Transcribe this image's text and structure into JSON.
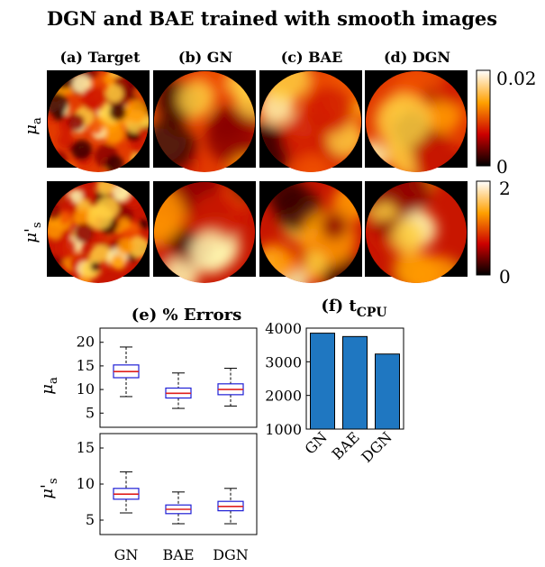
{
  "figure_title": "DGN and BAE trained with smooth images",
  "image_panels": {
    "columns": [
      "(a) Target",
      "(b) GN",
      "(c) BAE",
      "(d) DGN"
    ],
    "rows": [
      {
        "symbol": "μ",
        "subscript": "a",
        "cbar_max": "0.02",
        "cbar_min": "0"
      },
      {
        "symbol": "μ'",
        "subscript": "s",
        "cbar_max": "2",
        "cbar_min": "0"
      }
    ]
  },
  "colors": {
    "box_outline": "#1f1fd6",
    "median": "#e0201e",
    "bar_fill": "#1f77c1",
    "colormap": "hot"
  },
  "chart_data": [
    {
      "type": "box",
      "title": "(e) % Errors",
      "panels": [
        {
          "ylabel_symbol": "μ",
          "ylabel_sub": "a",
          "ylim": [
            2,
            23
          ],
          "yticks": [
            5,
            10,
            15,
            20
          ],
          "categories": [
            "GN",
            "BAE",
            "DGN"
          ],
          "boxes": [
            {
              "whisker_low": 8.5,
              "q1": 12.5,
              "median": 13.8,
              "q3": 15.2,
              "whisker_high": 19.0
            },
            {
              "whisker_low": 6.0,
              "q1": 8.2,
              "median": 9.2,
              "q3": 10.3,
              "whisker_high": 13.5
            },
            {
              "whisker_low": 6.5,
              "q1": 8.9,
              "median": 10.0,
              "q3": 11.2,
              "whisker_high": 14.5
            }
          ]
        },
        {
          "ylabel_symbol": "μ'",
          "ylabel_sub": "s",
          "ylim": [
            3,
            17
          ],
          "yticks": [
            5,
            10,
            15
          ],
          "categories": [
            "GN",
            "BAE",
            "DGN"
          ],
          "boxes": [
            {
              "whisker_low": 6.0,
              "q1": 7.9,
              "median": 8.6,
              "q3": 9.4,
              "whisker_high": 11.7
            },
            {
              "whisker_low": 4.5,
              "q1": 5.9,
              "median": 6.5,
              "q3": 7.1,
              "whisker_high": 8.9
            },
            {
              "whisker_low": 4.5,
              "q1": 6.3,
              "median": 6.9,
              "q3": 7.6,
              "whisker_high": 9.4
            }
          ]
        }
      ]
    },
    {
      "type": "bar",
      "title_main": "(f) t",
      "title_sub": "CPU",
      "categories": [
        "GN",
        "BAE",
        "DGN"
      ],
      "values": [
        3850,
        3750,
        3230
      ],
      "ylim": [
        1000,
        4000
      ],
      "yticks": [
        1000,
        2000,
        3000,
        4000
      ]
    }
  ]
}
